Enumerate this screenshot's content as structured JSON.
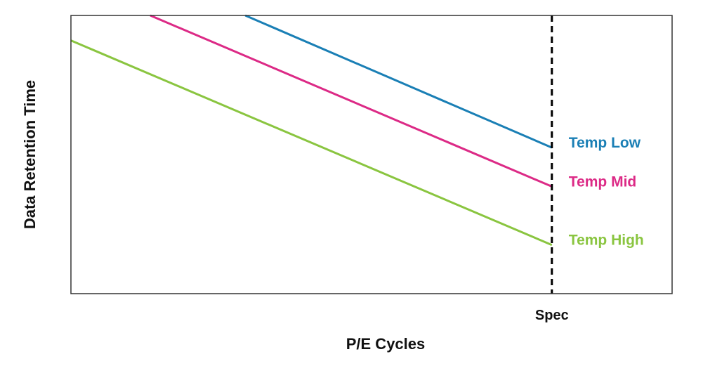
{
  "chart_data": {
    "type": "line",
    "title": "",
    "xlabel": "P/E Cycles",
    "ylabel": "Data Retention Time",
    "xlim": [
      0,
      100
    ],
    "ylim": [
      0,
      100
    ],
    "grid": false,
    "x_reference_line": {
      "x": 80,
      "label": "Spec",
      "style": "dashed",
      "color": "#000000"
    },
    "series": [
      {
        "name": "Temp Low",
        "color": "#1a7fb5",
        "points": [
          [
            29.0,
            100
          ],
          [
            80,
            52.5
          ]
        ]
      },
      {
        "name": "Temp Mid",
        "color": "#dc2a86",
        "points": [
          [
            13.2,
            100
          ],
          [
            80,
            38.5
          ]
        ]
      },
      {
        "name": "Temp High",
        "color": "#8ac540",
        "points": [
          [
            0,
            91
          ],
          [
            80,
            17.5
          ]
        ]
      }
    ]
  }
}
